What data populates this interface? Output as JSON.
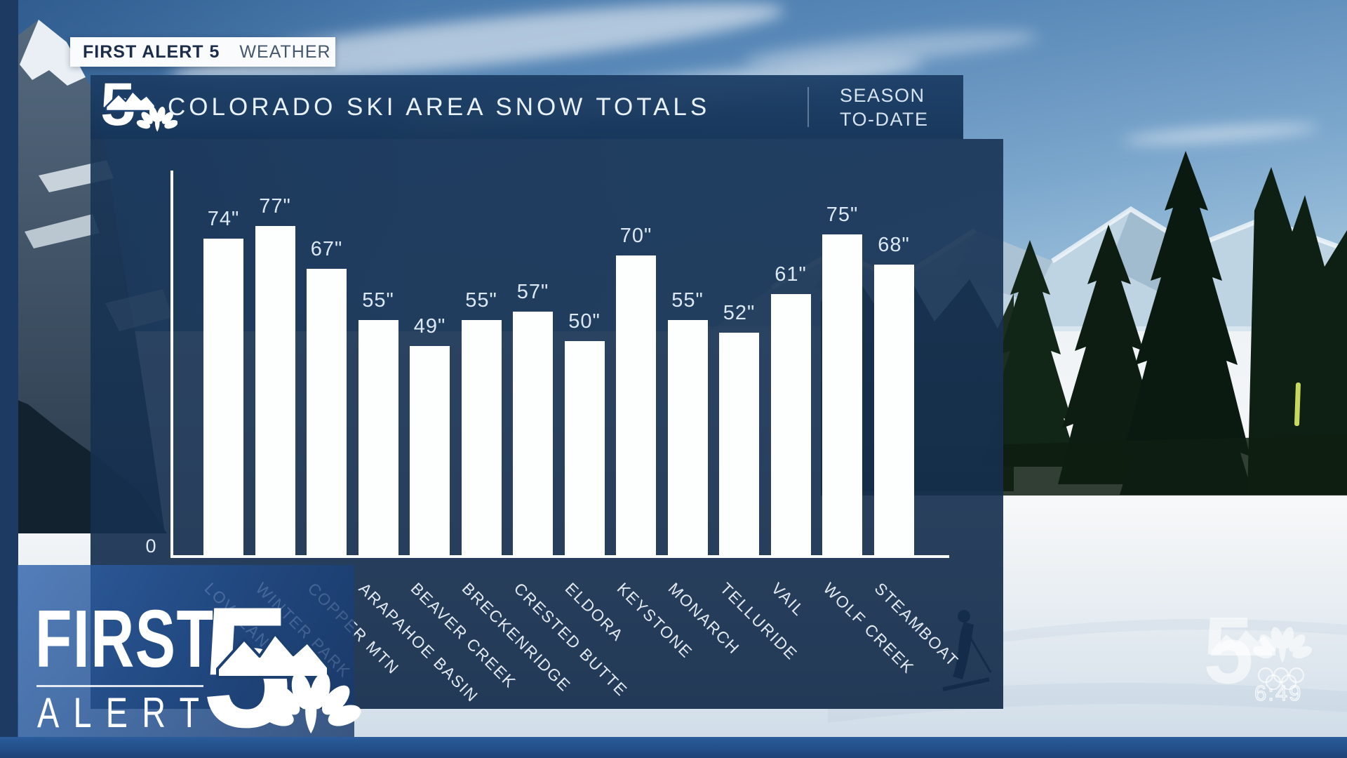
{
  "badge": {
    "brand": "FIRST ALERT 5",
    "divider": "|",
    "section": "WEATHER"
  },
  "header": {
    "station_number": "5",
    "title": "COLORADO SKI AREA SNOW TOTALS",
    "tag_line1": "SEASON",
    "tag_line2": "TO-DATE"
  },
  "chart_data": {
    "type": "bar",
    "title": "COLORADO SKI AREA SNOW TOTALS",
    "subtitle": "SEASON TO-DATE",
    "unit": "inches",
    "categories": [
      "LOVELAND",
      "WINTER PARK",
      "COPPER MTN",
      "ARAPAHOE BASIN",
      "BEAVER CREEK",
      "BRECKENRIDGE",
      "CRESTED BUTTE",
      "ELDORA",
      "KEYSTONE",
      "MONARCH",
      "TELLURIDE",
      "VAIL",
      "WOLF CREEK",
      "STEAMBOAT"
    ],
    "values": [
      74,
      77,
      67,
      55,
      49,
      55,
      57,
      50,
      70,
      55,
      52,
      61,
      75,
      68
    ],
    "value_labels": [
      "74\"",
      "77\"",
      "67\"",
      "55\"",
      "49\"",
      "55\"",
      "57\"",
      "50\"",
      "70\"",
      "55\"",
      "52\"",
      "61\"",
      "75\"",
      "68\""
    ],
    "ylim": [
      0,
      90
    ],
    "y_axis_ticks": [
      "0"
    ],
    "grid": false,
    "legend": null,
    "bar_color": "#ffffff"
  },
  "branding_logo": {
    "line1": "FIRST",
    "line2": "ALERT",
    "number": "5"
  },
  "watermark": {
    "number": "5",
    "time": "6:49"
  },
  "colors": {
    "header_bg": "#1c3c64",
    "panel_bg": "#18344f",
    "banner_blue": "#265ca8",
    "bottom_bar": "#23508a",
    "text_light": "#e8f0f8"
  }
}
